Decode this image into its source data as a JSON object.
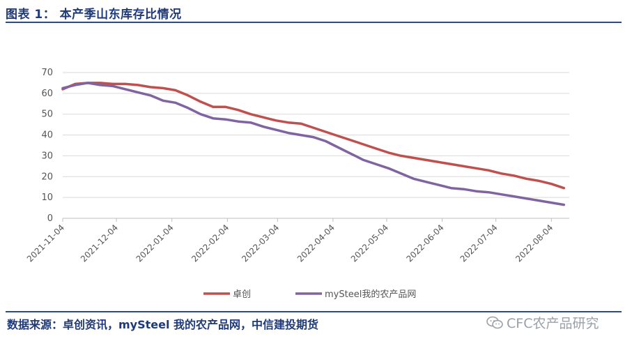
{
  "figure": {
    "title": "图表 1：  本产季山东库存比情况",
    "source": "数据来源：卓创资讯，mySteel 我的农产品网，中信建投期货",
    "watermark_text": "CFC农产品研究",
    "watermark_icon": "wechat-icon"
  },
  "chart_data": {
    "type": "line",
    "title": "",
    "xlabel": "",
    "ylabel": "",
    "ylim": [
      0,
      70
    ],
    "yticks": [
      0,
      10,
      20,
      30,
      40,
      50,
      60,
      70
    ],
    "xlim": [
      "2021-11-04",
      "2022-08-14"
    ],
    "xticks": [
      "2021-11-04",
      "2021-12-04",
      "2022-01-04",
      "2022-02-04",
      "2022-03-04",
      "2022-04-04",
      "2022-05-04",
      "2022-06-04",
      "2022-07-04",
      "2022-08-04"
    ],
    "grid": {
      "horizontal": true,
      "vertical": false
    },
    "legend_position": "bottom",
    "series": [
      {
        "name": "卓创",
        "color": "#c0504d",
        "points": [
          [
            "2021-11-04",
            62
          ],
          [
            "2021-11-11",
            64.5
          ],
          [
            "2021-11-18",
            65
          ],
          [
            "2021-11-25",
            65
          ],
          [
            "2021-12-02",
            64.5
          ],
          [
            "2021-12-09",
            64.5
          ],
          [
            "2021-12-16",
            64
          ],
          [
            "2021-12-23",
            63
          ],
          [
            "2021-12-30",
            62.5
          ],
          [
            "2022-01-06",
            61.5
          ],
          [
            "2022-01-13",
            59
          ],
          [
            "2022-01-20",
            56
          ],
          [
            "2022-01-27",
            53.5
          ],
          [
            "2022-02-03",
            53.5
          ],
          [
            "2022-02-10",
            52
          ],
          [
            "2022-02-17",
            50
          ],
          [
            "2022-02-24",
            48.5
          ],
          [
            "2022-03-03",
            47
          ],
          [
            "2022-03-10",
            46
          ],
          [
            "2022-03-17",
            45.5
          ],
          [
            "2022-03-24",
            43.5
          ],
          [
            "2022-03-31",
            41.5
          ],
          [
            "2022-04-07",
            39.5
          ],
          [
            "2022-04-14",
            37.5
          ],
          [
            "2022-04-21",
            35.5
          ],
          [
            "2022-04-28",
            33.5
          ],
          [
            "2022-05-05",
            31.5
          ],
          [
            "2022-05-12",
            30
          ],
          [
            "2022-05-19",
            29
          ],
          [
            "2022-05-26",
            28
          ],
          [
            "2022-06-02",
            27
          ],
          [
            "2022-06-09",
            26
          ],
          [
            "2022-06-16",
            25
          ],
          [
            "2022-06-23",
            24
          ],
          [
            "2022-06-30",
            23
          ],
          [
            "2022-07-07",
            21.5
          ],
          [
            "2022-07-14",
            20.5
          ],
          [
            "2022-07-21",
            19
          ],
          [
            "2022-07-28",
            18
          ],
          [
            "2022-08-04",
            16.5
          ],
          [
            "2022-08-11",
            14.5
          ]
        ]
      },
      {
        "name": "mySteel我的农产品网",
        "color": "#8064a2",
        "points": [
          [
            "2021-11-04",
            62.5
          ],
          [
            "2021-11-11",
            64
          ],
          [
            "2021-11-18",
            65
          ],
          [
            "2021-11-25",
            64
          ],
          [
            "2021-12-02",
            63.5
          ],
          [
            "2021-12-09",
            62
          ],
          [
            "2021-12-16",
            60.5
          ],
          [
            "2021-12-23",
            59
          ],
          [
            "2021-12-30",
            56.5
          ],
          [
            "2022-01-06",
            55.5
          ],
          [
            "2022-01-13",
            53
          ],
          [
            "2022-01-20",
            50
          ],
          [
            "2022-01-27",
            48
          ],
          [
            "2022-02-03",
            47.5
          ],
          [
            "2022-02-10",
            46.5
          ],
          [
            "2022-02-17",
            46
          ],
          [
            "2022-02-24",
            44
          ],
          [
            "2022-03-03",
            42.5
          ],
          [
            "2022-03-10",
            41
          ],
          [
            "2022-03-17",
            40
          ],
          [
            "2022-03-24",
            39
          ],
          [
            "2022-03-31",
            37
          ],
          [
            "2022-04-07",
            34
          ],
          [
            "2022-04-14",
            31
          ],
          [
            "2022-04-21",
            28
          ],
          [
            "2022-04-28",
            26
          ],
          [
            "2022-05-05",
            24
          ],
          [
            "2022-05-12",
            21.5
          ],
          [
            "2022-05-19",
            19
          ],
          [
            "2022-05-26",
            17.5
          ],
          [
            "2022-06-02",
            16
          ],
          [
            "2022-06-09",
            14.5
          ],
          [
            "2022-06-16",
            14
          ],
          [
            "2022-06-23",
            13
          ],
          [
            "2022-06-30",
            12.5
          ],
          [
            "2022-07-07",
            11.5
          ],
          [
            "2022-07-14",
            10.5
          ],
          [
            "2022-07-21",
            9.5
          ],
          [
            "2022-07-28",
            8.5
          ],
          [
            "2022-08-04",
            7.5
          ],
          [
            "2022-08-11",
            6.5
          ]
        ]
      }
    ]
  }
}
